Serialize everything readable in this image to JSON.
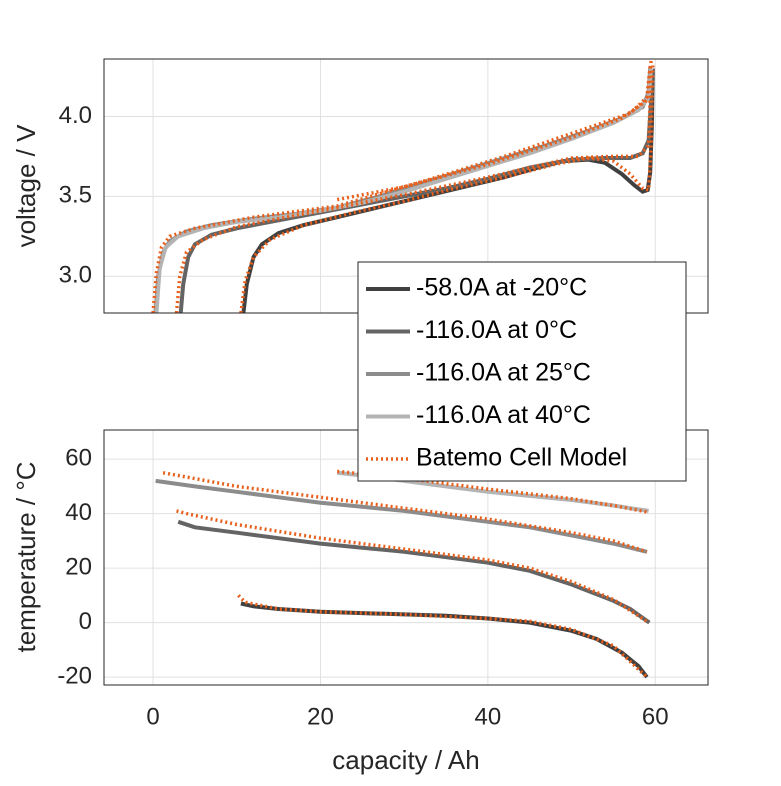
{
  "chart_data": [
    {
      "type": "line",
      "ylabel": "voltage / V",
      "ylim": [
        2.77,
        4.36
      ],
      "yticks": [
        {
          "value": 3,
          "label": "3.0"
        },
        3.5,
        {
          "value": 4,
          "label": "4.0"
        }
      ],
      "grid": true,
      "legend": "lower right",
      "series": [
        {
          "name": "-58.0A at -20°C",
          "color": "#404040",
          "x": [
            10.8,
            11.2,
            12,
            13,
            15,
            18,
            22,
            26,
            30,
            34,
            38,
            42,
            46,
            49,
            52,
            54,
            56,
            57.5,
            58.5,
            59.1,
            59.4,
            59.6,
            59.7
          ],
          "values": [
            2.77,
            2.95,
            3.12,
            3.2,
            3.27,
            3.32,
            3.37,
            3.42,
            3.47,
            3.52,
            3.57,
            3.62,
            3.68,
            3.72,
            3.73,
            3.71,
            3.64,
            3.57,
            3.53,
            3.54,
            3.65,
            3.95,
            4.3
          ]
        },
        {
          "name": "-116.0A at 0°C",
          "color": "#646464",
          "x": [
            3.3,
            3.6,
            4.2,
            5,
            7,
            10,
            15,
            20,
            25,
            30,
            35,
            40,
            45,
            50,
            54,
            57,
            58.5,
            59.2,
            59.5,
            59.6
          ],
          "values": [
            2.77,
            2.95,
            3.12,
            3.2,
            3.26,
            3.3,
            3.35,
            3.4,
            3.45,
            3.5,
            3.55,
            3.61,
            3.68,
            3.73,
            3.74,
            3.74,
            3.77,
            3.85,
            4.1,
            4.3
          ]
        },
        {
          "name": "-116.0A at 25°C",
          "color": "#8c8c8c",
          "x": [
            0.3,
            0.6,
            1.2,
            2,
            4,
            7,
            12,
            17,
            22,
            27,
            32,
            37,
            42,
            47,
            52,
            56,
            58.5,
            59.2,
            59.4
          ],
          "values": [
            2.77,
            3.0,
            3.15,
            3.22,
            3.28,
            3.32,
            3.36,
            3.39,
            3.43,
            3.5,
            3.58,
            3.66,
            3.74,
            3.82,
            3.91,
            3.99,
            4.06,
            4.15,
            4.3
          ]
        },
        {
          "name": "-116.0A at 40°C",
          "color": "#b4b4b4",
          "x": [
            0.4,
            0.8,
            1.5,
            3,
            6,
            10,
            15,
            20,
            25,
            30,
            35,
            40,
            45,
            50,
            55,
            58,
            59.2,
            59.5
          ],
          "values": [
            2.77,
            3.05,
            3.18,
            3.25,
            3.3,
            3.34,
            3.37,
            3.41,
            3.46,
            3.53,
            3.61,
            3.69,
            3.77,
            3.86,
            3.96,
            4.04,
            4.12,
            4.3
          ]
        },
        {
          "name": "Batemo Cell Model",
          "color": "#e8601c",
          "style": "dotted",
          "x": [
            10.5,
            11,
            12,
            14,
            18,
            24,
            30,
            36,
            42,
            48,
            52,
            55,
            57,
            58.5,
            59.2,
            59.5,
            59.7,
            null,
            2.8,
            3.2,
            4,
            6,
            10,
            20,
            30,
            40,
            50,
            55,
            58,
            59.2,
            59.5,
            null,
            0,
            0.4,
            1,
            2,
            5,
            12,
            22,
            32,
            42,
            52,
            57,
            59,
            59.4,
            null,
            22,
            30,
            40,
            50,
            56,
            59,
            59.5
          ],
          "values": [
            2.77,
            2.97,
            3.12,
            3.23,
            3.32,
            3.4,
            3.47,
            3.55,
            3.62,
            3.7,
            3.74,
            3.72,
            3.64,
            3.55,
            3.54,
            3.8,
            4.32,
            null,
            2.77,
            3.0,
            3.15,
            3.23,
            3.31,
            3.41,
            3.51,
            3.62,
            3.74,
            3.75,
            3.75,
            3.82,
            4.3,
            null,
            2.77,
            3.02,
            3.18,
            3.25,
            3.3,
            3.37,
            3.44,
            3.59,
            3.75,
            3.93,
            4.02,
            4.12,
            4.32,
            null,
            3.48,
            3.56,
            3.7,
            3.87,
            3.99,
            4.1,
            4.35
          ]
        }
      ]
    },
    {
      "type": "line",
      "ylabel": "temperature / °C",
      "xlabel": "capacity / Ah",
      "xlim": [
        -5.86,
        66.3
      ],
      "xticks": [
        0,
        20,
        40,
        60
      ],
      "ylim": [
        -22.9,
        70.7
      ],
      "yticks": [
        -20,
        0,
        20,
        40,
        60
      ],
      "grid": true,
      "series": [
        {
          "color": "#404040",
          "x": [
            10.5,
            12,
            15,
            20,
            25,
            30,
            35,
            40,
            45,
            50,
            53,
            56,
            58,
            59
          ],
          "values": [
            7,
            6,
            5,
            4,
            3.5,
            3,
            2.5,
            1.5,
            0,
            -3,
            -6,
            -11,
            -16,
            -20
          ]
        },
        {
          "color": "#646464",
          "x": [
            3,
            5,
            10,
            15,
            20,
            25,
            30,
            35,
            40,
            45,
            50,
            55,
            57,
            59.3
          ],
          "values": [
            37,
            35,
            33,
            31,
            29,
            27.5,
            26,
            24,
            22,
            19,
            14,
            8,
            5,
            0
          ]
        },
        {
          "color": "#8c8c8c",
          "x": [
            0.3,
            5,
            10,
            15,
            20,
            25,
            30,
            35,
            40,
            45,
            50,
            55,
            57,
            59
          ],
          "values": [
            52,
            50,
            48,
            46,
            44,
            42.5,
            41,
            39,
            37,
            35,
            32,
            29,
            27.5,
            26
          ]
        },
        {
          "color": "#b4b4b4",
          "x": [
            22,
            25,
            30,
            35,
            40,
            45,
            50,
            55,
            57,
            59.2
          ],
          "values": [
            55,
            54,
            52,
            50,
            48,
            46.5,
            45,
            43,
            42,
            41
          ]
        },
        {
          "color": "#e8601c",
          "style": "dotted",
          "x": [
            10.2,
            11,
            15,
            20,
            30,
            40,
            45,
            50,
            55,
            59,
            null,
            2.8,
            4,
            10,
            20,
            30,
            40,
            45,
            50,
            55,
            59.2,
            null,
            1.2,
            3,
            10,
            20,
            30,
            40,
            50,
            55,
            59,
            null,
            22,
            30,
            40,
            50,
            55,
            59.2
          ],
          "values": [
            10,
            7.5,
            5,
            4,
            3,
            1.5,
            0.5,
            -2.5,
            -8.5,
            -20,
            null,
            41,
            40,
            36,
            31,
            27,
            23,
            20,
            15,
            8.5,
            0,
            null,
            55,
            54,
            50,
            46,
            42,
            38,
            33,
            30,
            26,
            null,
            55.5,
            53,
            49,
            45.5,
            43,
            40.5
          ]
        }
      ]
    }
  ]
}
